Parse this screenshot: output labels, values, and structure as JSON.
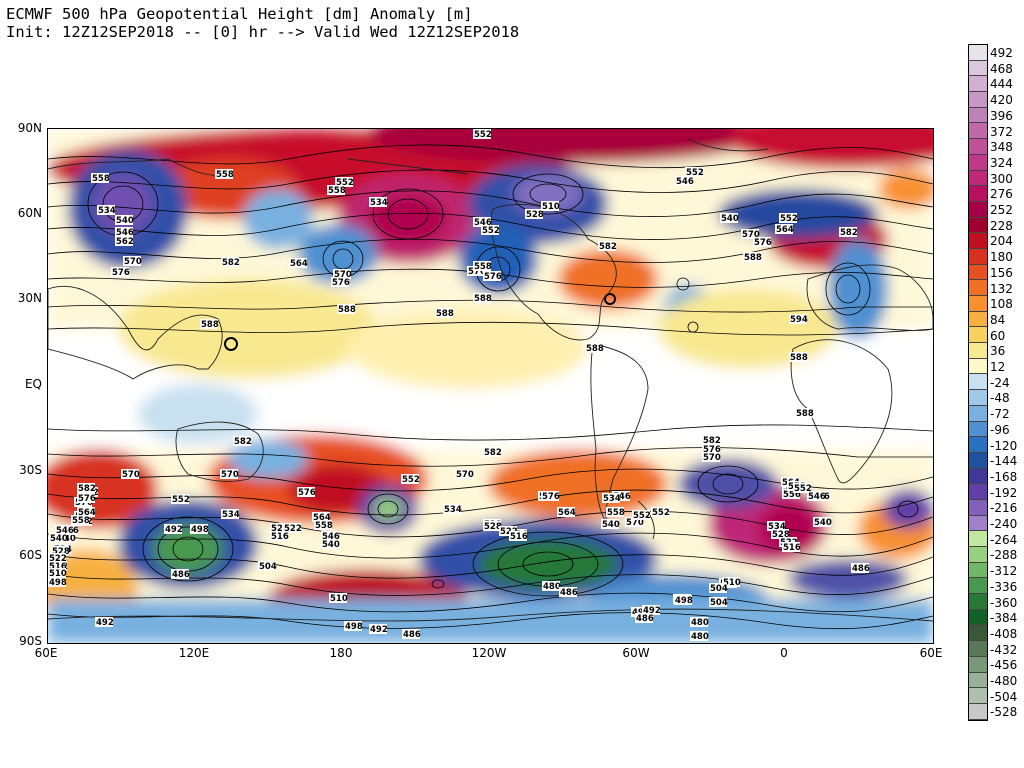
{
  "title": {
    "line1": "ECMWF 500 hPa Geopotential Height [dm] Anomaly [m]",
    "line2": "Init: 12Z12SEP2018 -- [0] hr --> Valid Wed 12Z12SEP2018"
  },
  "axes": {
    "lat_labels": [
      "90N",
      "60N",
      "30N",
      "EQ",
      "30S",
      "60S",
      "90S"
    ],
    "lon_labels": [
      "60E",
      "120E",
      "180",
      "120W",
      "60W",
      "0",
      "60E"
    ]
  },
  "colorbar": {
    "labels": [
      "492",
      "468",
      "444",
      "420",
      "396",
      "372",
      "348",
      "324",
      "300",
      "276",
      "252",
      "228",
      "204",
      "180",
      "156",
      "132",
      "108",
      "84",
      "60",
      "36",
      "12",
      "-24",
      "-48",
      "-72",
      "-96",
      "-120",
      "-144",
      "-168",
      "-192",
      "-216",
      "-240",
      "-264",
      "-288",
      "-312",
      "-336",
      "-360",
      "-384",
      "-408",
      "-432",
      "-456",
      "-480",
      "-504",
      "-528"
    ],
    "colors": [
      "#e8e2ea",
      "#dcc8dc",
      "#d0b0d0",
      "#c898c4",
      "#c080b8",
      "#c068a8",
      "#c05098",
      "#c03888",
      "#c02878",
      "#b81060",
      "#a80048",
      "#a00030",
      "#c01020",
      "#d83020",
      "#e85020",
      "#f07028",
      "#f89030",
      "#f8b040",
      "#f8d060",
      "#f8e890",
      "#fff8c8",
      "#c8e0f0",
      "#a0c8e8",
      "#78b0e0",
      "#5090d0",
      "#2870c0",
      "#2050a0",
      "#403898",
      "#6040a8",
      "#8060b8",
      "#a080c8",
      "#c0e8a0",
      "#98d080",
      "#70b868",
      "#489850",
      "#287838",
      "#106028",
      "#385838",
      "#587858",
      "#789878",
      "#98b098",
      "#b0c0b0",
      "#c8c8c8"
    ]
  },
  "height_labels": [
    {
      "text": "552"
    },
    {
      "text": "558"
    },
    {
      "text": "558"
    },
    {
      "text": "552"
    },
    {
      "text": "558"
    },
    {
      "text": "534"
    },
    {
      "text": "534"
    },
    {
      "text": "540"
    },
    {
      "text": "546"
    },
    {
      "text": "562"
    },
    {
      "text": "570"
    },
    {
      "text": "576"
    },
    {
      "text": "582"
    },
    {
      "text": "564"
    },
    {
      "text": "570"
    },
    {
      "text": "576"
    },
    {
      "text": "546"
    },
    {
      "text": "552"
    },
    {
      "text": "576"
    },
    {
      "text": "558"
    },
    {
      "text": "576"
    },
    {
      "text": "528"
    },
    {
      "text": "510"
    },
    {
      "text": "552"
    },
    {
      "text": "546"
    },
    {
      "text": "540"
    },
    {
      "text": "552"
    },
    {
      "text": "564"
    },
    {
      "text": "570"
    },
    {
      "text": "576"
    },
    {
      "text": "582"
    },
    {
      "text": "588"
    },
    {
      "text": "582"
    },
    {
      "text": "588"
    },
    {
      "text": "588"
    },
    {
      "text": "588"
    },
    {
      "text": "588"
    },
    {
      "text": "594"
    },
    {
      "text": "588"
    },
    {
      "text": "588"
    },
    {
      "text": "588"
    },
    {
      "text": "582"
    },
    {
      "text": "570"
    },
    {
      "text": "582"
    },
    {
      "text": "576"
    },
    {
      "text": "570"
    },
    {
      "text": "564"
    },
    {
      "text": "558"
    },
    {
      "text": "552"
    },
    {
      "text": "546"
    },
    {
      "text": "540"
    },
    {
      "text": "534"
    },
    {
      "text": "528"
    },
    {
      "text": "522"
    },
    {
      "text": "516"
    },
    {
      "text": "510"
    },
    {
      "text": "504"
    },
    {
      "text": "498"
    },
    {
      "text": "492"
    },
    {
      "text": "486"
    },
    {
      "text": "480"
    },
    {
      "text": "498"
    },
    {
      "text": "492"
    },
    {
      "text": "486"
    },
    {
      "text": "480"
    },
    {
      "text": "552"
    },
    {
      "text": "534"
    },
    {
      "text": "528"
    },
    {
      "text": "516"
    },
    {
      "text": "504"
    },
    {
      "text": "492"
    },
    {
      "text": "498"
    },
    {
      "text": "486"
    },
    {
      "text": "510"
    },
    {
      "text": "498"
    },
    {
      "text": "492"
    },
    {
      "text": "486"
    },
    {
      "text": "546"
    },
    {
      "text": "540"
    },
    {
      "text": "564"
    },
    {
      "text": "558"
    },
    {
      "text": "576"
    },
    {
      "text": "570"
    },
    {
      "text": "552"
    },
    {
      "text": "534"
    },
    {
      "text": "528"
    },
    {
      "text": "522"
    },
    {
      "text": "516"
    },
    {
      "text": "576"
    },
    {
      "text": "564"
    },
    {
      "text": "556"
    },
    {
      "text": "552"
    },
    {
      "text": "546"
    },
    {
      "text": "582"
    },
    {
      "text": "576"
    },
    {
      "text": "570"
    },
    {
      "text": "564"
    },
    {
      "text": "558"
    },
    {
      "text": "552"
    },
    {
      "text": "546"
    },
    {
      "text": "540"
    },
    {
      "text": "534"
    },
    {
      "text": "528"
    },
    {
      "text": "522"
    },
    {
      "text": "516"
    },
    {
      "text": "510"
    },
    {
      "text": "504"
    },
    {
      "text": "498"
    },
    {
      "text": "480"
    },
    {
      "text": "582"
    },
    {
      "text": "576"
    },
    {
      "text": "564"
    },
    {
      "text": "570"
    },
    {
      "text": "540"
    },
    {
      "text": "552"
    },
    {
      "text": "546"
    },
    {
      "text": "534"
    },
    {
      "text": "528"
    },
    {
      "text": "522"
    },
    {
      "text": "516"
    },
    {
      "text": "486"
    },
    {
      "text": "582"
    },
    {
      "text": "576"
    },
    {
      "text": "564"
    },
    {
      "text": "558"
    },
    {
      "text": "546"
    },
    {
      "text": "540"
    },
    {
      "text": "528"
    },
    {
      "text": "522"
    },
    {
      "text": "516"
    },
    {
      "text": "510"
    },
    {
      "text": "498"
    }
  ]
}
